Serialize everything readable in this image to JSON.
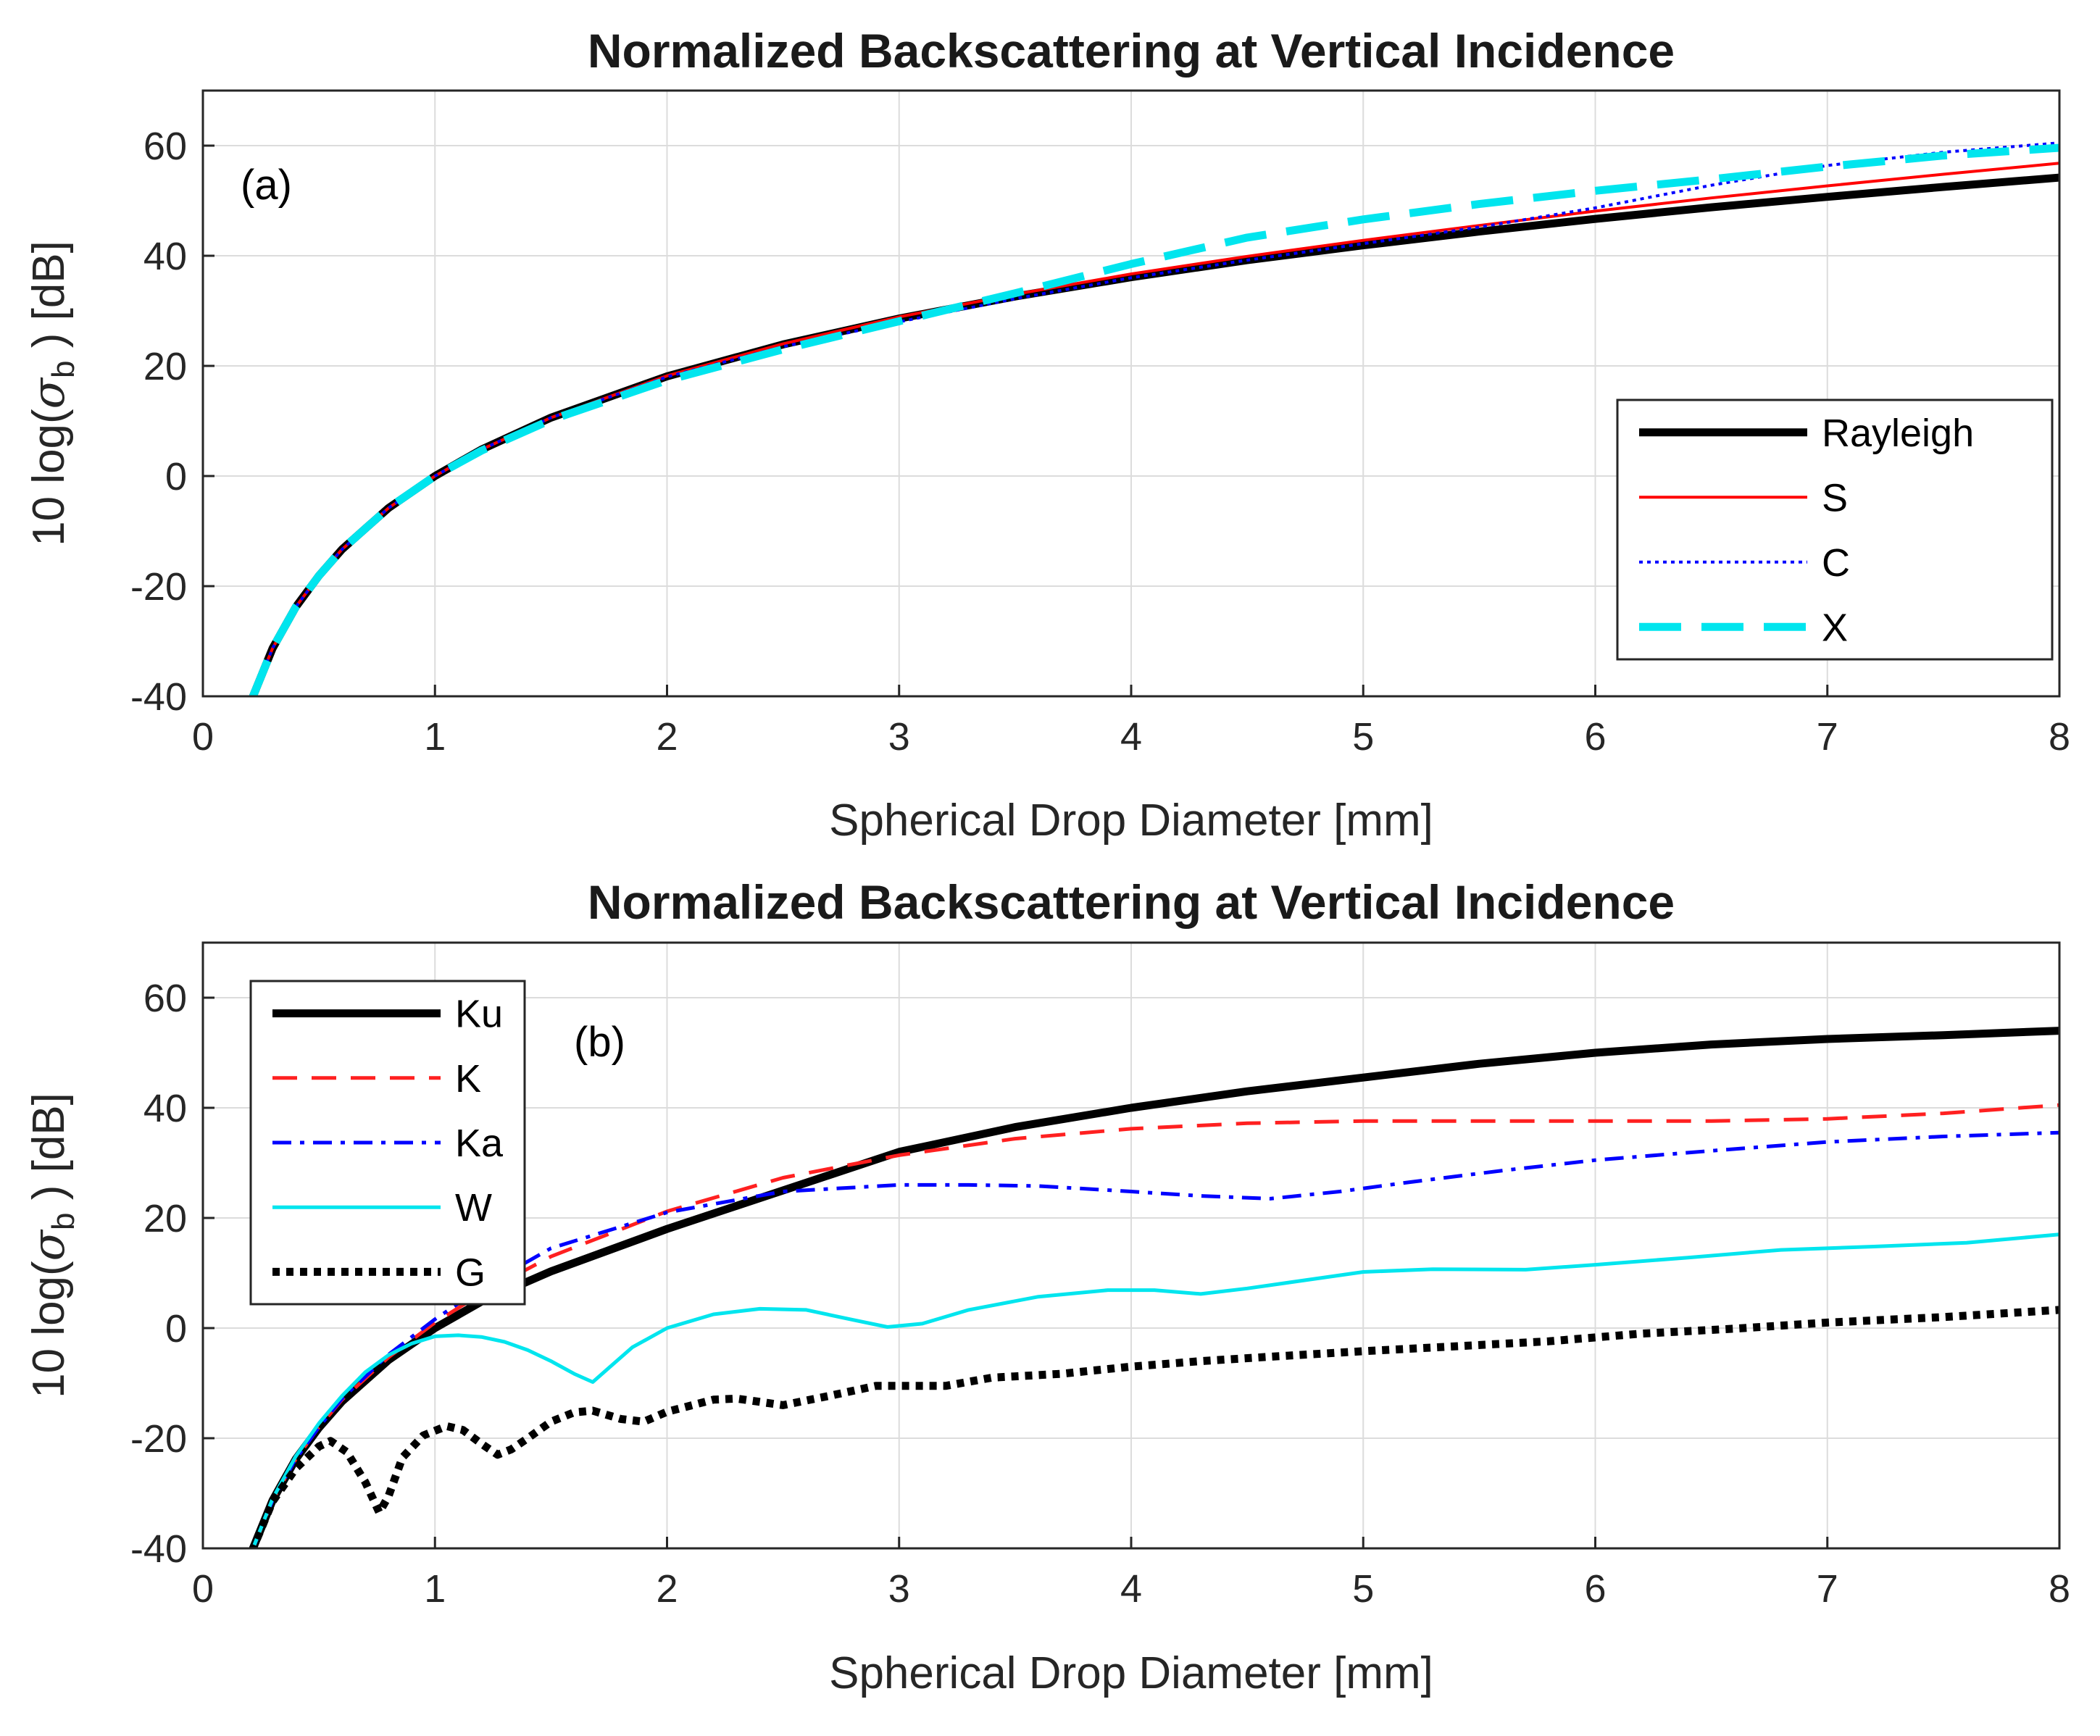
{
  "chart_data": [
    {
      "type": "line",
      "title": "Normalized Backscattering at Vertical Incidence",
      "annotation": "(a)",
      "xlabel": "Spherical Drop Diameter [mm]",
      "ylabel_prefix": "10 log(",
      "ylabel_symbol": "σ",
      "ylabel_sub": "b",
      "ylabel_suffix": ") [dB]",
      "xlim": [
        0,
        8
      ],
      "ylim": [
        -40,
        70
      ],
      "xticks": [
        0,
        1,
        2,
        3,
        4,
        5,
        6,
        7,
        8
      ],
      "yticks": [
        -40,
        -20,
        0,
        20,
        40,
        60
      ],
      "grid": true,
      "legend_position": "right",
      "series": [
        {
          "name": "Rayleigh",
          "color": "#000000",
          "style": "solid",
          "width": "thick",
          "x": [
            0.21,
            0.3,
            0.4,
            0.5,
            0.6,
            0.8,
            1.0,
            1.2,
            1.5,
            2.0,
            2.5,
            3.0,
            3.5,
            4.0,
            4.5,
            5.0,
            5.5,
            6.0,
            6.5,
            7.0,
            7.5,
            8.0
          ],
          "y": [
            -40.6,
            -31.3,
            -23.8,
            -18.1,
            -13.3,
            -5.8,
            0,
            4.8,
            10.6,
            18.1,
            23.9,
            28.6,
            32.6,
            36.1,
            39.2,
            41.9,
            44.4,
            46.7,
            48.8,
            50.7,
            52.5,
            54.2
          ]
        },
        {
          "name": "S",
          "color": "#ff0000",
          "style": "solid",
          "width": "thin",
          "x": [
            0.21,
            0.3,
            0.4,
            0.5,
            0.6,
            0.8,
            1.0,
            1.2,
            1.5,
            2.0,
            2.5,
            3.0,
            3.5,
            4.0,
            4.5,
            5.0,
            5.5,
            6.0,
            6.5,
            7.0,
            7.5,
            8.0
          ],
          "y": [
            -40.6,
            -31.3,
            -23.8,
            -18.1,
            -13.3,
            -5.8,
            0,
            4.8,
            10.6,
            18.2,
            24.0,
            28.9,
            33.0,
            36.7,
            39.9,
            42.8,
            45.5,
            48.1,
            50.5,
            52.7,
            54.8,
            56.8
          ]
        },
        {
          "name": "C",
          "color": "#0000ff",
          "style": "dotted",
          "width": "thin",
          "x": [
            0.21,
            0.3,
            0.4,
            0.5,
            0.6,
            0.8,
            1.0,
            1.2,
            1.5,
            2.0,
            2.5,
            3.0,
            3.5,
            4.0,
            4.5,
            5.0,
            5.5,
            6.0,
            6.5,
            7.0,
            7.5,
            8.0
          ],
          "y": [
            -40.6,
            -31.3,
            -23.8,
            -18.1,
            -13.3,
            -5.8,
            0,
            4.8,
            10.6,
            18.0,
            23.5,
            28.0,
            32.2,
            36.0,
            39.2,
            42.2,
            45.2,
            48.7,
            52.8,
            56.4,
            58.8,
            60.5
          ]
        },
        {
          "name": "X",
          "color": "#00e5ee",
          "style": "dashed",
          "width": "thick",
          "x": [
            0.21,
            0.3,
            0.4,
            0.5,
            0.6,
            0.8,
            1.0,
            1.2,
            1.5,
            2.0,
            2.5,
            3.0,
            3.5,
            4.0,
            4.5,
            5.0,
            5.5,
            6.0,
            6.5,
            7.0,
            7.5,
            8.0
          ],
          "y": [
            -40.6,
            -31.3,
            -23.8,
            -18.1,
            -13.3,
            -5.8,
            0,
            4.6,
            10.2,
            17.4,
            23.0,
            28.1,
            33.2,
            38.5,
            43.3,
            46.6,
            49.4,
            51.8,
            53.9,
            56.2,
            58.2,
            59.6
          ]
        }
      ]
    },
    {
      "type": "line",
      "title": "Normalized Backscattering at Vertical Incidence",
      "annotation": "(b)",
      "xlabel": "Spherical Drop Diameter [mm]",
      "ylabel_prefix": "10 log(",
      "ylabel_symbol": "σ",
      "ylabel_sub": "b",
      "ylabel_suffix": ") [dB]",
      "xlim": [
        0,
        8
      ],
      "ylim": [
        -40,
        70
      ],
      "xticks": [
        0,
        1,
        2,
        3,
        4,
        5,
        6,
        7,
        8
      ],
      "yticks": [
        -40,
        -20,
        0,
        20,
        40,
        60
      ],
      "grid": true,
      "legend_position": "top-left",
      "series": [
        {
          "name": "Ku",
          "color": "#000000",
          "style": "solid",
          "width": "thick",
          "x": [
            0.21,
            0.3,
            0.4,
            0.5,
            0.6,
            0.8,
            1.0,
            1.2,
            1.5,
            2.0,
            2.5,
            3.0,
            3.5,
            4.0,
            4.5,
            5.0,
            5.5,
            6.0,
            6.5,
            7.0,
            7.5,
            8.0
          ],
          "y": [
            -40.6,
            -31.3,
            -23.8,
            -18.1,
            -13.3,
            -5.8,
            0,
            4.8,
            10.3,
            18.0,
            25.0,
            32.0,
            36.5,
            40.0,
            43.0,
            45.5,
            48.0,
            50.0,
            51.5,
            52.5,
            53.2,
            54.0
          ]
        },
        {
          "name": "K",
          "color": "#ff2020",
          "style": "dashed",
          "width": "medium",
          "x": [
            0.21,
            0.3,
            0.4,
            0.5,
            0.6,
            0.8,
            1.0,
            1.2,
            1.5,
            2.0,
            2.5,
            3.0,
            3.5,
            4.0,
            4.5,
            5.0,
            5.5,
            6.0,
            6.5,
            7.0,
            7.5,
            8.0
          ],
          "y": [
            -40.6,
            -31.3,
            -23.8,
            -18.0,
            -13.0,
            -5.3,
            1.0,
            6.3,
            13.0,
            21.2,
            27.3,
            31.4,
            34.4,
            36.2,
            37.2,
            37.6,
            37.6,
            37.6,
            37.6,
            38.0,
            39.0,
            40.5
          ]
        },
        {
          "name": "Ka",
          "color": "#0000ff",
          "style": "dashdot",
          "width": "medium",
          "x": [
            0.21,
            0.3,
            0.4,
            0.5,
            0.6,
            0.8,
            1.0,
            1.2,
            1.5,
            2.0,
            2.5,
            3.0,
            3.3,
            3.6,
            4.0,
            4.3,
            4.6,
            4.9,
            5.2,
            5.6,
            6.0,
            6.5,
            7.0,
            7.5,
            8.0
          ],
          "y": [
            -40.6,
            -31.3,
            -23.8,
            -18.0,
            -12.8,
            -4.8,
            1.6,
            7.3,
            14.5,
            21.0,
            24.8,
            26.0,
            26.0,
            25.8,
            24.8,
            24.0,
            23.5,
            24.8,
            26.5,
            28.6,
            30.5,
            32.2,
            33.8,
            34.8,
            35.5
          ]
        },
        {
          "name": "W",
          "color": "#00e5ee",
          "style": "solid",
          "width": "medium",
          "x": [
            0.21,
            0.3,
            0.4,
            0.5,
            0.6,
            0.7,
            0.8,
            0.9,
            1.0,
            1.1,
            1.2,
            1.3,
            1.4,
            1.5,
            1.6,
            1.68,
            1.75,
            1.85,
            2.0,
            2.2,
            2.4,
            2.6,
            2.8,
            2.95,
            3.1,
            3.3,
            3.6,
            3.9,
            4.1,
            4.3,
            4.5,
            4.8,
            5.0,
            5.3,
            5.7,
            6.0,
            6.4,
            6.8,
            7.2,
            7.6,
            8.0
          ],
          "y": [
            -40.6,
            -31.0,
            -23.3,
            -17.3,
            -12.3,
            -8.0,
            -4.9,
            -2.8,
            -1.5,
            -1.3,
            -1.6,
            -2.5,
            -4.0,
            -6.0,
            -8.3,
            -9.8,
            -7.2,
            -3.5,
            0,
            2.5,
            3.5,
            3.3,
            1.5,
            0.2,
            0.8,
            3.3,
            5.7,
            6.9,
            6.9,
            6.2,
            7.2,
            9.0,
            10.2,
            10.7,
            10.6,
            11.5,
            12.8,
            14.2,
            14.8,
            15.5,
            17.0
          ]
        },
        {
          "name": "G",
          "color": "#000000",
          "style": "dotted",
          "width": "thick",
          "x": [
            0.21,
            0.3,
            0.4,
            0.5,
            0.55,
            0.62,
            0.7,
            0.76,
            0.8,
            0.86,
            0.95,
            1.05,
            1.12,
            1.2,
            1.27,
            1.33,
            1.4,
            1.5,
            1.6,
            1.68,
            1.8,
            1.9,
            2.0,
            2.2,
            2.3,
            2.5,
            2.7,
            2.9,
            3.0,
            3.2,
            3.4,
            3.7,
            4.0,
            4.3,
            4.6,
            5.0,
            5.4,
            5.8,
            6.2,
            6.6,
            7.0,
            7.5,
            8.0
          ],
          "y": [
            -40.6,
            -31.5,
            -25.5,
            -21.5,
            -20.5,
            -22.5,
            -28.0,
            -33.5,
            -30.5,
            -23.5,
            -19.5,
            -17.8,
            -18.5,
            -21.0,
            -23.0,
            -22.0,
            -20.0,
            -17.0,
            -15.3,
            -15.0,
            -16.5,
            -17.0,
            -15.2,
            -13.0,
            -12.8,
            -14.0,
            -12.3,
            -10.5,
            -10.5,
            -10.5,
            -9.0,
            -8.3,
            -7.0,
            -6.0,
            -5.2,
            -4.2,
            -3.3,
            -2.4,
            -1.0,
            -0.1,
            1.0,
            2.0,
            3.3
          ]
        }
      ]
    }
  ]
}
